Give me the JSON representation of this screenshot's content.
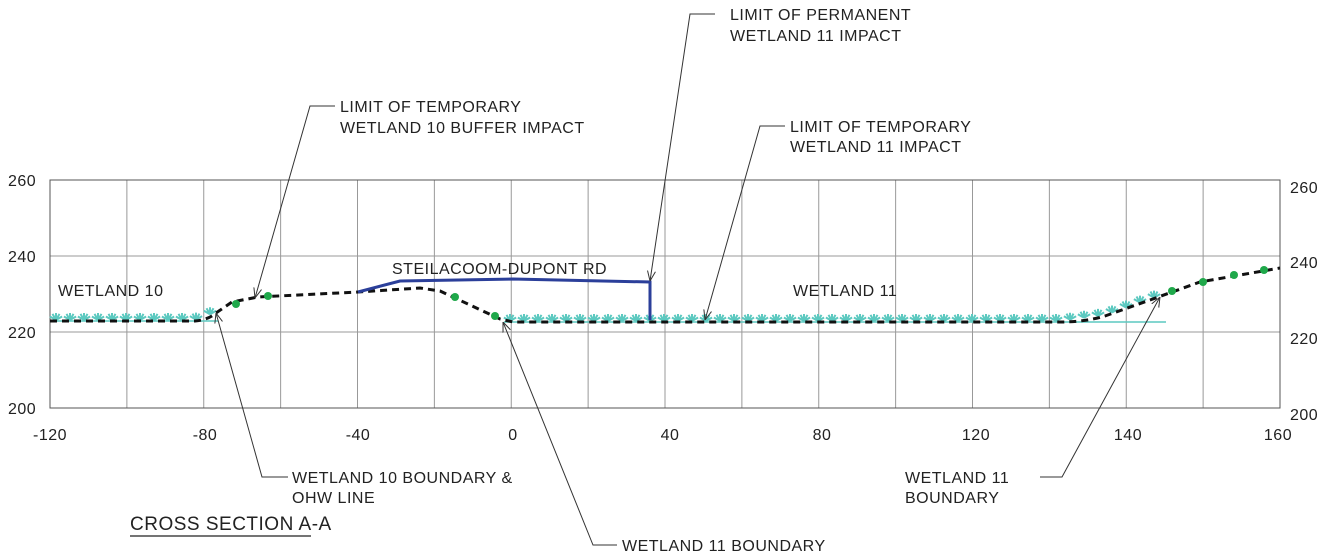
{
  "title": "CROSS SECTION A-A",
  "road_label": "STEILACOOM-DUPONT RD",
  "areas": [
    "WETLAND 10",
    "WETLAND 11"
  ],
  "callouts": [
    {
      "lines": [
        "LIMIT OF PERMANENT",
        "WETLAND 11 IMPACT"
      ]
    },
    {
      "lines": [
        "LIMIT OF TEMPORARY",
        "WETLAND 10 BUFFER IMPACT"
      ]
    },
    {
      "lines": [
        "LIMIT OF TEMPORARY",
        "WETLAND 11 IMPACT"
      ]
    },
    {
      "lines": [
        "WETLAND 10 BOUNDARY &",
        "OHW LINE"
      ]
    },
    {
      "lines": [
        "WETLAND 11",
        "BOUNDARY"
      ]
    },
    {
      "lines": [
        "WETLAND 11 BOUNDARY"
      ]
    }
  ],
  "axes": {
    "y_left": [
      260,
      240,
      220,
      200
    ],
    "y_right": [
      260,
      240,
      220,
      200
    ],
    "x": [
      -120,
      -80,
      -40,
      0,
      40,
      80,
      120,
      140,
      160
    ]
  }
}
